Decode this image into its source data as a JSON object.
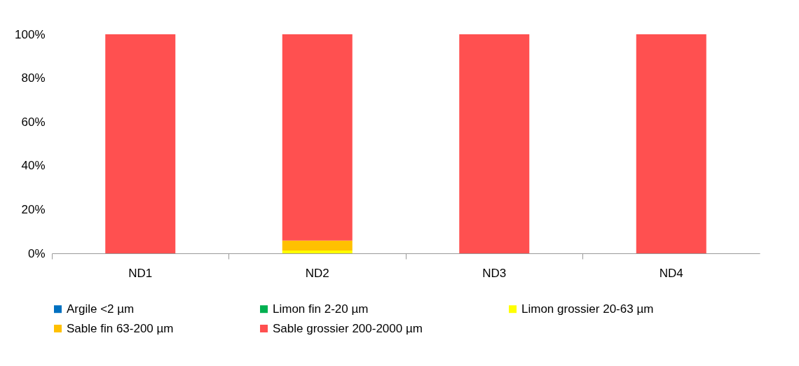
{
  "chart_data": {
    "type": "bar",
    "stacked": true,
    "categories": [
      "ND1",
      "ND2",
      "ND3",
      "ND4"
    ],
    "series": [
      {
        "name": "Argile <2 µm",
        "color": "#0070c0",
        "values": [
          0,
          0,
          0,
          0
        ]
      },
      {
        "name": "Limon fin 2-20 µm",
        "color": "#00b050",
        "values": [
          0,
          0,
          0,
          0
        ]
      },
      {
        "name": "Limon grossier 20-63 µm",
        "color": "#ffff00",
        "values": [
          0,
          1.3,
          0,
          0
        ]
      },
      {
        "name": "Sable fin 63-200 µm",
        "color": "#ffc000",
        "values": [
          0,
          4.5,
          0,
          0
        ]
      },
      {
        "name": "Sable grossier 200-2000 µm",
        "color": "#ff5050",
        "values": [
          100,
          94.2,
          100,
          100
        ]
      }
    ],
    "ylim": [
      0,
      100
    ],
    "yticks": [
      {
        "value": 0,
        "label": "0%"
      },
      {
        "value": 20,
        "label": "20%"
      },
      {
        "value": 40,
        "label": "40%"
      },
      {
        "value": 60,
        "label": "60%"
      },
      {
        "value": 80,
        "label": "80%"
      },
      {
        "value": 100,
        "label": "100%"
      }
    ],
    "grid": false,
    "legend": "bottom"
  }
}
